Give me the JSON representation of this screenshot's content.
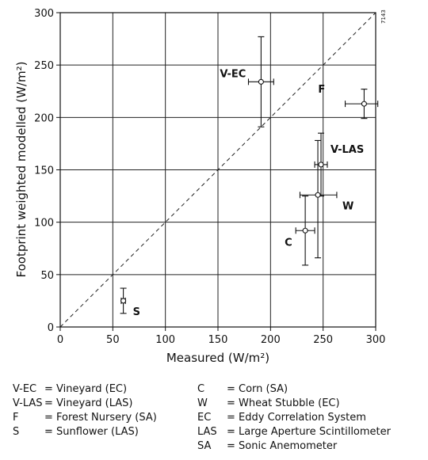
{
  "figure_id": "7143",
  "chart_data": {
    "type": "scatter",
    "xlabel": "Measured (W/m²)",
    "ylabel": "Footprint weighted modelled (W/m²)",
    "xlim": [
      0,
      300
    ],
    "ylim": [
      0,
      300
    ],
    "x_ticks": [
      "0",
      "50",
      "100",
      "150",
      "200",
      "250",
      "300"
    ],
    "y_ticks": [
      "0",
      "50",
      "100",
      "150",
      "200",
      "250",
      "300"
    ],
    "grid": true,
    "reference_line": "1:1 dashed diagonal",
    "points": [
      {
        "label": "V-EC",
        "x": 191,
        "y": 234,
        "x_err": [
          179,
          203
        ],
        "y_err": [
          191,
          277
        ]
      },
      {
        "label": "F",
        "x": 289,
        "y": 213,
        "x_err": [
          271,
          302
        ],
        "y_err": [
          199,
          227
        ]
      },
      {
        "label": "V-LAS",
        "x": 248,
        "y": 155,
        "x_err": [
          242,
          254
        ],
        "y_err": [
          125,
          185
        ]
      },
      {
        "label": "W",
        "x": 245,
        "y": 126,
        "x_err": [
          228,
          263
        ],
        "y_err": [
          66,
          178
        ]
      },
      {
        "label": "C",
        "x": 233,
        "y": 92,
        "x_err": [
          224,
          242
        ],
        "y_err": [
          59,
          125
        ]
      },
      {
        "label": "S",
        "x": 60,
        "y": 25,
        "x_err": [
          58,
          62
        ],
        "y_err": [
          13,
          37
        ]
      }
    ]
  },
  "legend": {
    "col1": [
      {
        "abbr": "V-EC",
        "desc": "= Vineyard (EC)"
      },
      {
        "abbr": "V-LAS",
        "desc": "= Vineyard (LAS)"
      },
      {
        "abbr": "F",
        "desc": "= Forest Nursery (SA)"
      },
      {
        "abbr": "S",
        "desc": "= Sunflower (LAS)"
      }
    ],
    "col2": [
      {
        "abbr": "C",
        "desc": "= Corn (SA)"
      },
      {
        "abbr": "W",
        "desc": "= Wheat Stubble (EC)"
      },
      {
        "abbr": "EC",
        "desc": "= Eddy Correlation System"
      },
      {
        "abbr": "LAS",
        "desc": "= Large Aperture Scintillometer"
      },
      {
        "abbr": "SA",
        "desc": "= Sonic Anemometer"
      }
    ]
  }
}
